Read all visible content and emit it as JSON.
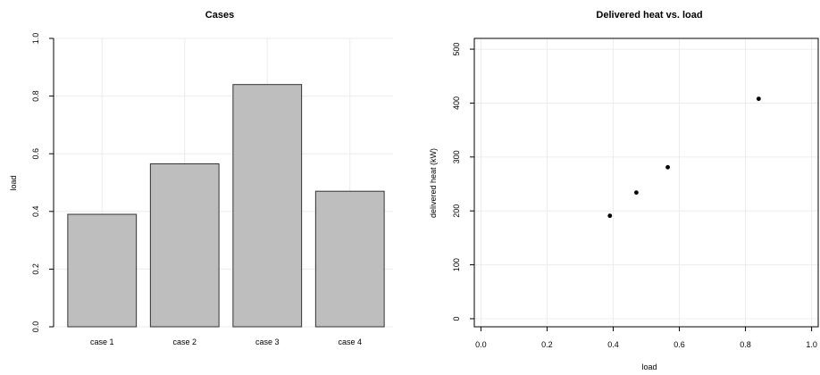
{
  "chart_data": [
    {
      "type": "bar",
      "title": "Cases",
      "xlabel": "",
      "ylabel": "load",
      "categories": [
        "case 1",
        "case 2",
        "case 3",
        "case 4"
      ],
      "values": [
        0.39,
        0.565,
        0.84,
        0.47
      ],
      "ylim": [
        0,
        1.0
      ],
      "yticks": [
        "0.0",
        "0.2",
        "0.4",
        "0.6",
        "0.8",
        "1.0"
      ],
      "grid": true,
      "bar_color": "#bebebe",
      "bar_edge_color": "#333333"
    },
    {
      "type": "scatter",
      "title": "Delivered heat vs. load",
      "xlabel": "load",
      "ylabel": "delivered heat (kW)",
      "x": [
        0.39,
        0.47,
        0.565,
        0.84
      ],
      "y": [
        191,
        234,
        281,
        408
      ],
      "xlim": [
        -0.02,
        1.02
      ],
      "ylim": [
        -15,
        520
      ],
      "xticks": [
        "0.0",
        "0.2",
        "0.4",
        "0.6",
        "0.8",
        "1.0"
      ],
      "yticks": [
        "0",
        "100",
        "200",
        "300",
        "400",
        "500"
      ],
      "grid": true,
      "point_color": "#000000"
    }
  ]
}
